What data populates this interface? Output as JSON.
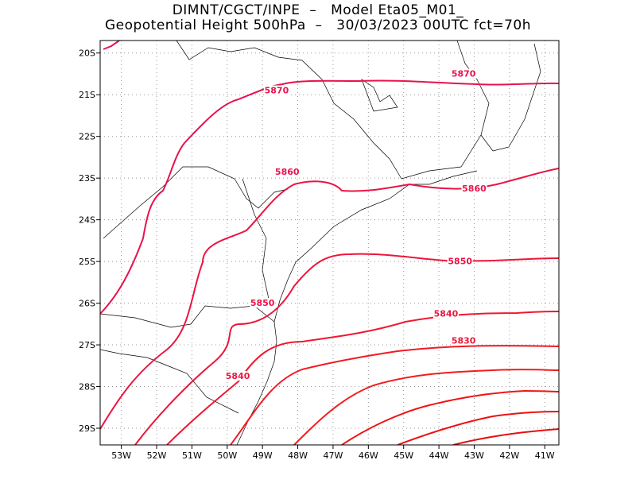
{
  "header": {
    "line1": "DIMNT/CGCT/INPE  –   Model Eta05_M01_",
    "line2": "Geopotential Height 500hPa  –   30/03/2023 00UTC fct=70h"
  },
  "map": {
    "lon_range": [
      -53.6,
      -40.6
    ],
    "lat_range": [
      -29.4,
      -19.7
    ],
    "x_ticks": [
      {
        "v": -53,
        "label": "53W"
      },
      {
        "v": -52,
        "label": "52W"
      },
      {
        "v": -51,
        "label": "51W"
      },
      {
        "v": -50,
        "label": "50W"
      },
      {
        "v": -49,
        "label": "49W"
      },
      {
        "v": -48,
        "label": "48W"
      },
      {
        "v": -47,
        "label": "47W"
      },
      {
        "v": -46,
        "label": "46W"
      },
      {
        "v": -45,
        "label": "45W"
      },
      {
        "v": -44,
        "label": "44W"
      },
      {
        "v": -43,
        "label": "43W"
      },
      {
        "v": -42,
        "label": "42W"
      },
      {
        "v": -41,
        "label": "41W"
      }
    ],
    "y_ticks": [
      {
        "v": -20,
        "label": "20S"
      },
      {
        "v": -21,
        "label": "21S"
      },
      {
        "v": -22,
        "label": "22S"
      },
      {
        "v": -23,
        "label": "23S"
      },
      {
        "v": -24,
        "label": "24S"
      },
      {
        "v": -25,
        "label": "25S"
      },
      {
        "v": -26,
        "label": "26S"
      },
      {
        "v": -27,
        "label": "27S"
      },
      {
        "v": -28,
        "label": "28S"
      },
      {
        "v": -29,
        "label": "29S"
      }
    ],
    "grid": "dotted",
    "contour_labels": [
      {
        "text": "5870",
        "lon": -48.6,
        "lat": -20.95,
        "color": "#e8144f"
      },
      {
        "text": "5870",
        "lon": -43.3,
        "lat": -20.55,
        "color": "#e8144f"
      },
      {
        "text": "5860",
        "lon": -48.3,
        "lat": -22.9,
        "color": "#e8144f"
      },
      {
        "text": "5860",
        "lon": -43.0,
        "lat": -23.3,
        "color": "#e8144f"
      },
      {
        "text": "5850",
        "lon": -43.4,
        "lat": -25.05,
        "color": "#ea1448"
      },
      {
        "text": "5850",
        "lon": -49.0,
        "lat": -26.05,
        "color": "#ea1448"
      },
      {
        "text": "5840",
        "lon": -43.8,
        "lat": -26.3,
        "color": "#ec1840"
      },
      {
        "text": "5840",
        "lon": -49.7,
        "lat": -27.8,
        "color": "#ec1840"
      },
      {
        "text": "5830",
        "lon": -43.3,
        "lat": -26.95,
        "color": "#ee1838"
      }
    ],
    "contour_colors": [
      "#e4105a",
      "#e8124e",
      "#ea1444",
      "#ec163a",
      "#f01830",
      "#f21a24",
      "#f41c1c",
      "#f01414",
      "#ec1010",
      "#e60e0e"
    ]
  }
}
